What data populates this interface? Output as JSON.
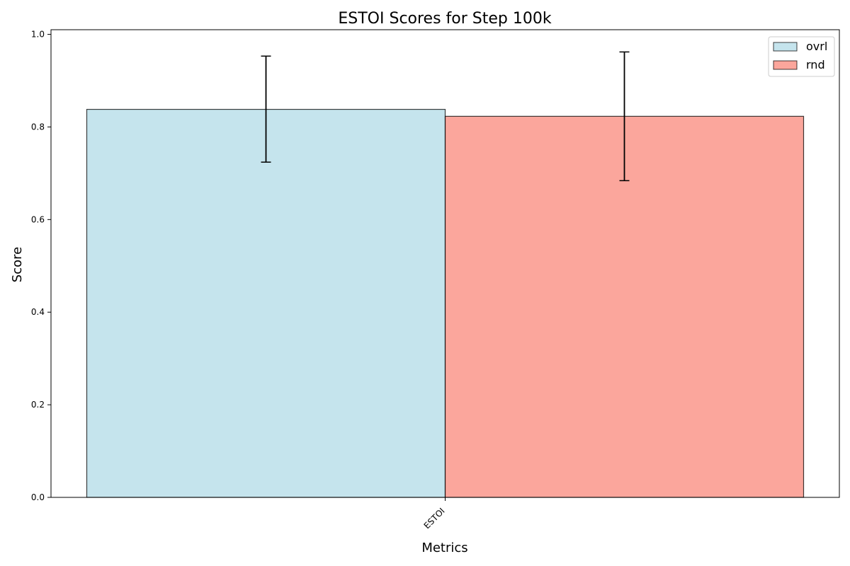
{
  "chart_data": {
    "type": "bar",
    "title": "ESTOI Scores for Step 100k",
    "xlabel": "Metrics",
    "ylabel": "Score",
    "categories": [
      "ESTOI"
    ],
    "ylim": [
      0,
      1.01
    ],
    "yticks": [
      0.0,
      0.2,
      0.4,
      0.6,
      0.8,
      1.0
    ],
    "grid": false,
    "legend_position": "top-right",
    "series": [
      {
        "name": "ovrl",
        "values": [
          0.838
        ],
        "error": [
          [
            0.724,
            0.953
          ]
        ],
        "color": "#add8e6"
      },
      {
        "name": "rnd",
        "values": [
          0.823
        ],
        "error": [
          [
            0.684,
            0.962
          ]
        ],
        "color": "#fa8072"
      }
    ]
  }
}
